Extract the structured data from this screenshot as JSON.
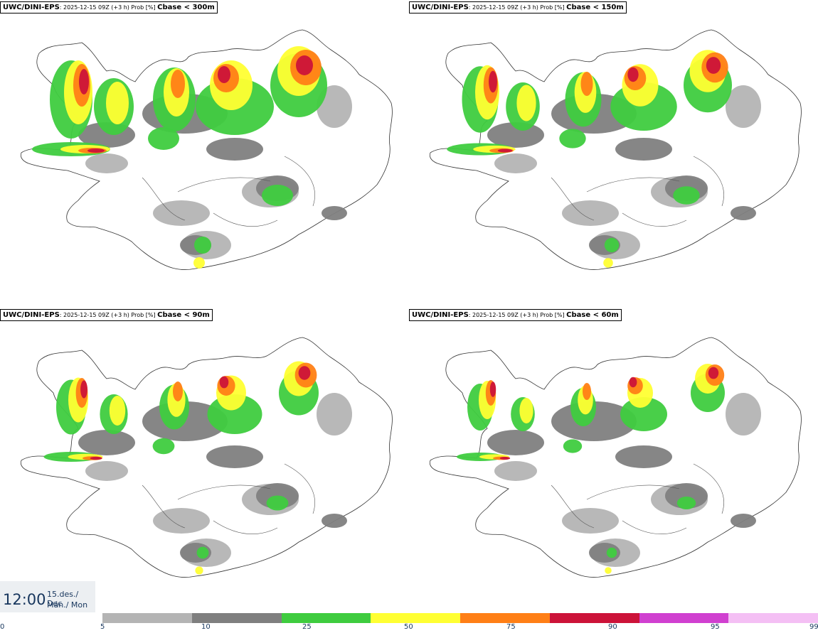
{
  "panels": [
    {
      "model": "UWC/DINI-EPS",
      "meta": ": 2025-12-15 09Z (+3 h) Prob [%] ",
      "threshold": "Cbase < 300m"
    },
    {
      "model": "UWC/DINI-EPS",
      "meta": ": 2025-12-15 09Z (+3 h) Prob [%] ",
      "threshold": "Cbase < 150m"
    },
    {
      "model": "UWC/DINI-EPS",
      "meta": ": 2025-12-15 09Z (+3 h) Prob [%] ",
      "threshold": "Cbase < 90m"
    },
    {
      "model": "UWC/DINI-EPS",
      "meta": ": 2025-12-15 09Z (+3 h) Prob [%] ",
      "threshold": "Cbase < 60m"
    }
  ],
  "time": {
    "clock": "12:00",
    "date_line1": "15.des./ Dec",
    "date_line2": "Mán./ Mon"
  },
  "colorbar": {
    "colors": [
      "#b4b4b4",
      "#7f7f7f",
      "#3fcc3f",
      "#ffff33",
      "#ff7f16",
      "#cc1339",
      "#d040d0",
      "#f4bff4"
    ],
    "ticks": [
      "0",
      "5",
      "10",
      "25",
      "50",
      "75",
      "90",
      "95",
      "99"
    ]
  }
}
